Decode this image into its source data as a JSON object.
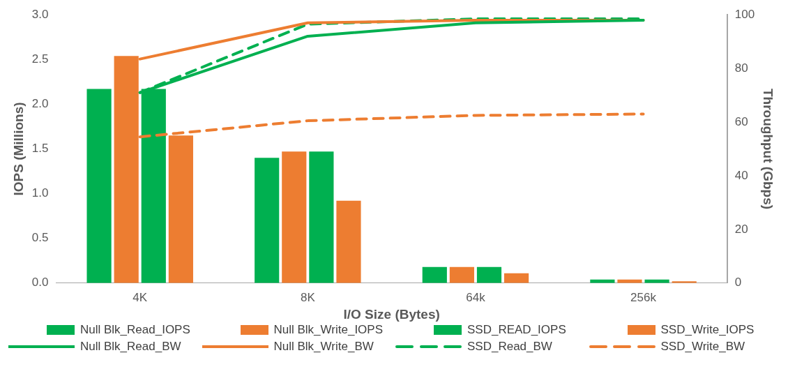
{
  "chart_data": {
    "type": "bar",
    "xlabel": "I/O Size (Bytes)",
    "ylabel": "IOPS (Millions)",
    "y2label": "Throughput (Gbps)",
    "categories": [
      "4K",
      "8K",
      "64k",
      "256k"
    ],
    "series": [
      {
        "name": "Null Blk_Read_IOPS",
        "color": "#00b050",
        "values": [
          2.17,
          1.4,
          0.18,
          0.04
        ]
      },
      {
        "name": "Null Blk_Write_IOPS",
        "color": "#ed7d31",
        "values": [
          2.54,
          1.47,
          0.18,
          0.04
        ]
      },
      {
        "name": "SSD_READ_IOPS",
        "color": "#00b050",
        "values": [
          2.17,
          1.47,
          0.18,
          0.04
        ]
      },
      {
        "name": "SSD_Write_IOPS",
        "color": "#ed7d31",
        "values": [
          1.65,
          0.92,
          0.11,
          0.02
        ]
      },
      {
        "name": "Null Blk_Read_BW",
        "type": "line",
        "axis": "y2",
        "line_style": "solid",
        "color": "#00b050",
        "values": [
          71,
          92,
          97,
          98
        ]
      },
      {
        "name": "Null Blk_Write_BW",
        "type": "line",
        "axis": "y2",
        "line_style": "solid",
        "color": "#ed7d31",
        "values": [
          83.5,
          97,
          98,
          98
        ]
      },
      {
        "name": "SSD_Read_BW",
        "type": "line",
        "axis": "y2",
        "line_style": "dashed",
        "color": "#00b050",
        "values": [
          71,
          96.5,
          98.5,
          98.5
        ]
      },
      {
        "name": "SSD_Write_BW",
        "type": "line",
        "axis": "y2",
        "line_style": "dashed",
        "color": "#ed7d31",
        "values": [
          54.5,
          60.5,
          62.5,
          63
        ]
      }
    ],
    "ylim": [
      0,
      3
    ],
    "yticks": [
      {
        "value": 0,
        "label": "0.0"
      },
      0.5,
      {
        "value": 1,
        "label": "1.0"
      },
      1.5,
      {
        "value": 2,
        "label": "2.0"
      },
      2.5,
      {
        "value": 3,
        "label": "3.0"
      }
    ],
    "y2lim": [
      0,
      100
    ],
    "y2ticks": [
      0,
      20,
      40,
      60,
      80,
      100
    ],
    "grid": false,
    "legend": "bottom",
    "marker": "none"
  }
}
